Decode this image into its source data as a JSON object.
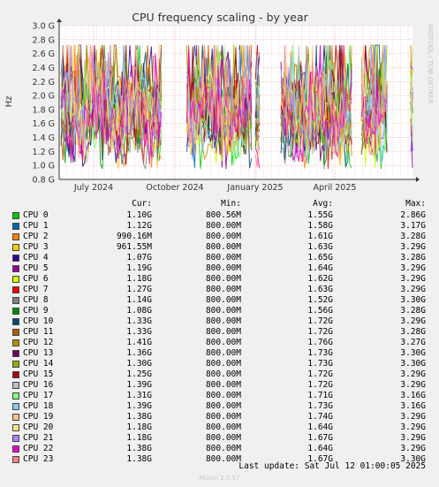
{
  "chart_data": {
    "type": "line",
    "title": "CPU frequency scaling - by year",
    "ylabel": "Hz",
    "ylim": [
      0.8,
      3.0
    ],
    "y_tick_labels": [
      "0.8 G",
      "1.0 G",
      "1.2 G",
      "1.4 G",
      "1.6 G",
      "1.8 G",
      "2.0 G",
      "2.2 G",
      "2.4 G",
      "2.6 G",
      "2.8 G",
      "3.0 G"
    ],
    "x_tick_labels": [
      "July 2024",
      "October 2024",
      "January 2025",
      "April 2025"
    ],
    "grid": true,
    "series_count": 24
  },
  "watermark": "RRDTOOL / TOBI OETIKER",
  "legend": {
    "headers": {
      "cur": "Cur:",
      "min": "Min:",
      "avg": "Avg:",
      "max": "Max:"
    },
    "rows": [
      {
        "name": "CPU  0",
        "color": "#00cc00",
        "cur": "1.10G",
        "min": "800.56M",
        "avg": "1.55G",
        "max": "2.86G"
      },
      {
        "name": "CPU  1",
        "color": "#0066b3",
        "cur": "1.12G",
        "min": "800.00M",
        "avg": "1.58G",
        "max": "3.17G"
      },
      {
        "name": "CPU  2",
        "color": "#ff8000",
        "cur": "990.16M",
        "min": "800.00M",
        "avg": "1.61G",
        "max": "3.28G"
      },
      {
        "name": "CPU  3",
        "color": "#ffcc00",
        "cur": "961.55M",
        "min": "800.00M",
        "avg": "1.63G",
        "max": "3.29G"
      },
      {
        "name": "CPU  4",
        "color": "#330099",
        "cur": "1.07G",
        "min": "800.00M",
        "avg": "1.65G",
        "max": "3.28G"
      },
      {
        "name": "CPU  5",
        "color": "#990099",
        "cur": "1.19G",
        "min": "800.00M",
        "avg": "1.64G",
        "max": "3.29G"
      },
      {
        "name": "CPU  6",
        "color": "#ccff00",
        "cur": "1.18G",
        "min": "800.00M",
        "avg": "1.62G",
        "max": "3.29G"
      },
      {
        "name": "CPU  7",
        "color": "#ff0000",
        "cur": "1.27G",
        "min": "800.00M",
        "avg": "1.63G",
        "max": "3.29G"
      },
      {
        "name": "CPU  8",
        "color": "#808080",
        "cur": "1.14G",
        "min": "800.00M",
        "avg": "1.52G",
        "max": "3.30G"
      },
      {
        "name": "CPU  9",
        "color": "#008f00",
        "cur": "1.08G",
        "min": "800.00M",
        "avg": "1.56G",
        "max": "3.28G"
      },
      {
        "name": "CPU 10",
        "color": "#00487d",
        "cur": "1.33G",
        "min": "800.00M",
        "avg": "1.72G",
        "max": "3.29G"
      },
      {
        "name": "CPU 11",
        "color": "#b35a00",
        "cur": "1.33G",
        "min": "800.00M",
        "avg": "1.72G",
        "max": "3.28G"
      },
      {
        "name": "CPU 12",
        "color": "#b38f00",
        "cur": "1.41G",
        "min": "800.00M",
        "avg": "1.76G",
        "max": "3.27G"
      },
      {
        "name": "CPU 13",
        "color": "#6b006b",
        "cur": "1.36G",
        "min": "800.00M",
        "avg": "1.73G",
        "max": "3.30G"
      },
      {
        "name": "CPU 14",
        "color": "#8fb300",
        "cur": "1.30G",
        "min": "800.00M",
        "avg": "1.73G",
        "max": "3.30G"
      },
      {
        "name": "CPU 15",
        "color": "#b30000",
        "cur": "1.25G",
        "min": "800.00M",
        "avg": "1.72G",
        "max": "3.29G"
      },
      {
        "name": "CPU 16",
        "color": "#bebebe",
        "cur": "1.39G",
        "min": "800.00M",
        "avg": "1.72G",
        "max": "3.29G"
      },
      {
        "name": "CPU 17",
        "color": "#80ff80",
        "cur": "1.31G",
        "min": "800.00M",
        "avg": "1.71G",
        "max": "3.16G"
      },
      {
        "name": "CPU 18",
        "color": "#80c9ff",
        "cur": "1.39G",
        "min": "800.00M",
        "avg": "1.73G",
        "max": "3.16G"
      },
      {
        "name": "CPU 19",
        "color": "#ffc080",
        "cur": "1.38G",
        "min": "800.00M",
        "avg": "1.74G",
        "max": "3.29G"
      },
      {
        "name": "CPU 20",
        "color": "#ffe680",
        "cur": "1.18G",
        "min": "800.00M",
        "avg": "1.64G",
        "max": "3.29G"
      },
      {
        "name": "CPU 21",
        "color": "#aa80ff",
        "cur": "1.18G",
        "min": "800.00M",
        "avg": "1.67G",
        "max": "3.29G"
      },
      {
        "name": "CPU 22",
        "color": "#ee00cc",
        "cur": "1.38G",
        "min": "800.00M",
        "avg": "1.64G",
        "max": "3.29G"
      },
      {
        "name": "CPU 23",
        "color": "#ff8080",
        "cur": "1.38G",
        "min": "800.00M",
        "avg": "1.67G",
        "max": "3.30G"
      }
    ]
  },
  "last_update": "Last update: Sat Jul 12 01:00:05 2025",
  "footer": "Munin 2.0.57"
}
